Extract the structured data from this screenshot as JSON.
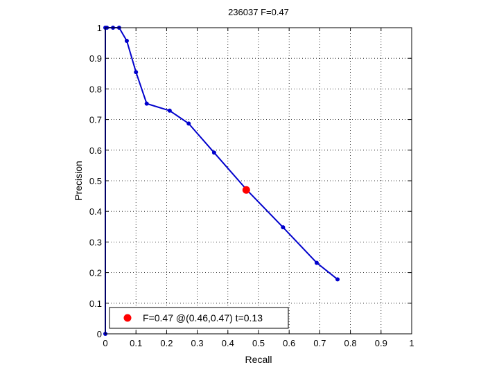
{
  "chart_data": {
    "type": "line",
    "title": "236037 F=0.47",
    "xlabel": "Recall",
    "ylabel": "Precision",
    "xlim": [
      0,
      1
    ],
    "ylim": [
      0,
      1
    ],
    "grid": true,
    "xticks": [
      "0",
      "0.1",
      "0.2",
      "0.3",
      "0.4",
      "0.5",
      "0.6",
      "0.7",
      "0.8",
      "0.9",
      "1"
    ],
    "yticks": [
      "0",
      "0.1",
      "0.2",
      "0.3",
      "0.4",
      "0.5",
      "0.6",
      "0.7",
      "0.8",
      "0.9",
      "1"
    ],
    "series": [
      {
        "color": "#0000cc",
        "x": [
          0,
          0,
          0.005,
          0.025,
          0.045,
          0.07,
          0.1,
          0.135,
          0.21,
          0.272,
          0.355,
          0.462,
          0.58,
          0.69,
          0.758
        ],
        "y": [
          0,
          1,
          1,
          1,
          1,
          0.957,
          0.855,
          0.752,
          0.729,
          0.687,
          0.592,
          0.47,
          0.348,
          0.232,
          0.178
        ]
      }
    ],
    "highlight": {
      "x": 0.46,
      "y": 0.47,
      "color": "#ff0000"
    },
    "legend": {
      "position": "bottom-left",
      "label": "F=0.47 @(0.46,0.47) t=0.13"
    }
  }
}
